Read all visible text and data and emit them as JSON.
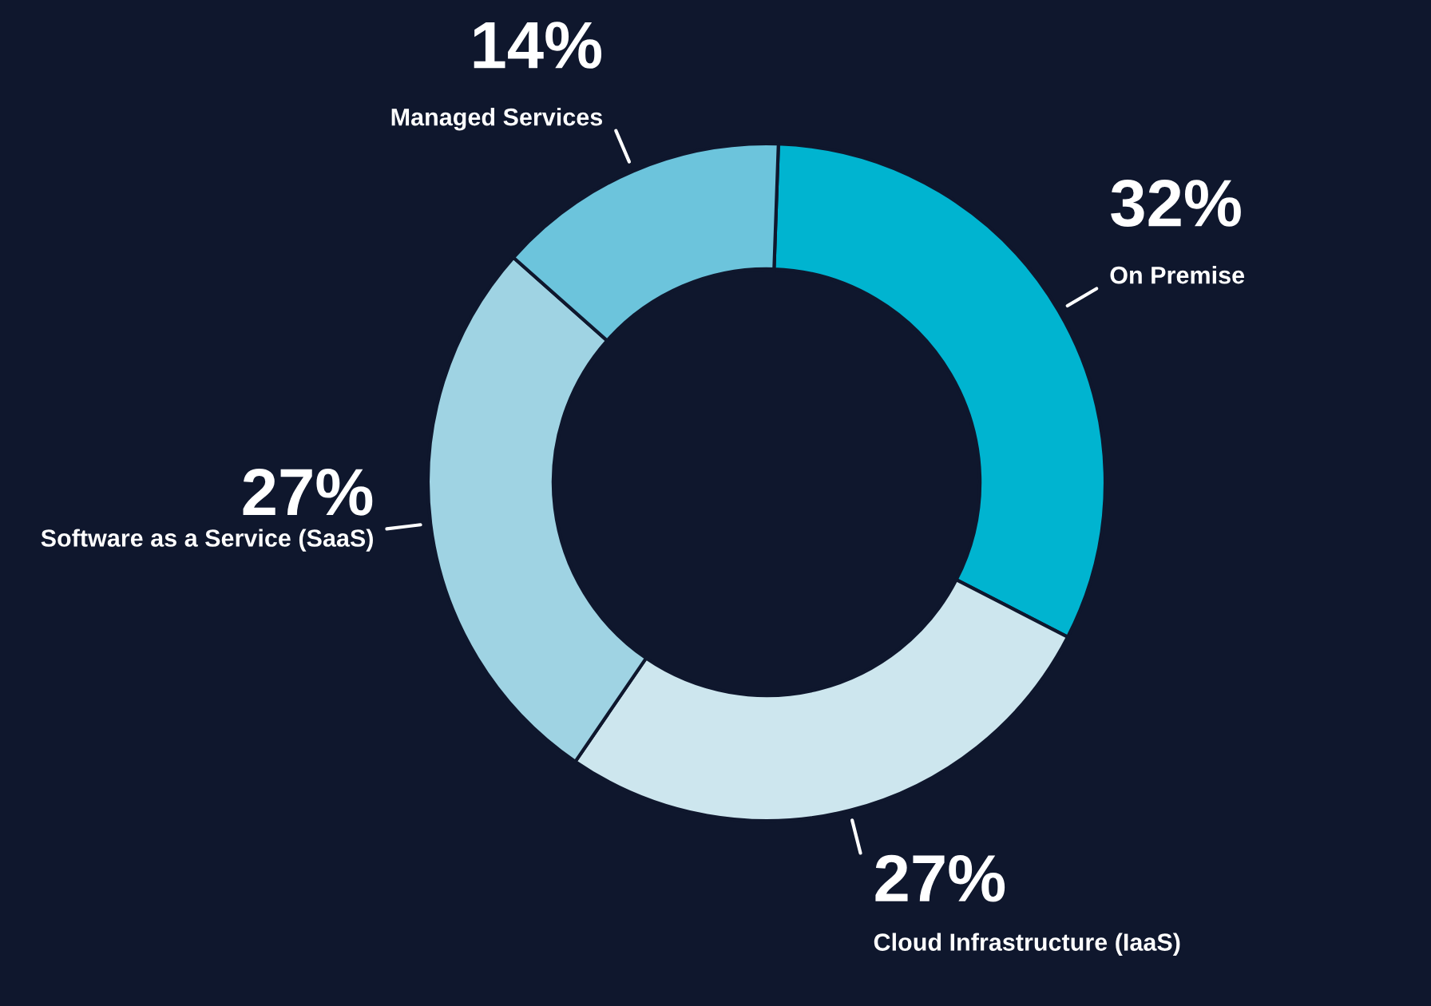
{
  "chart_data": {
    "type": "donut",
    "categories": [
      "On Premise",
      "Cloud Infrastructure (IaaS)",
      "Software as a Service (SaaS)",
      "Managed Services"
    ],
    "values": [
      32,
      27,
      27,
      14
    ],
    "colors": [
      "#00b4d0",
      "#cde6ee",
      "#9fd3e3",
      "#6cc4dc"
    ],
    "value_labels": [
      "32%",
      "27%",
      "27%",
      "14%"
    ],
    "legend": false
  }
}
